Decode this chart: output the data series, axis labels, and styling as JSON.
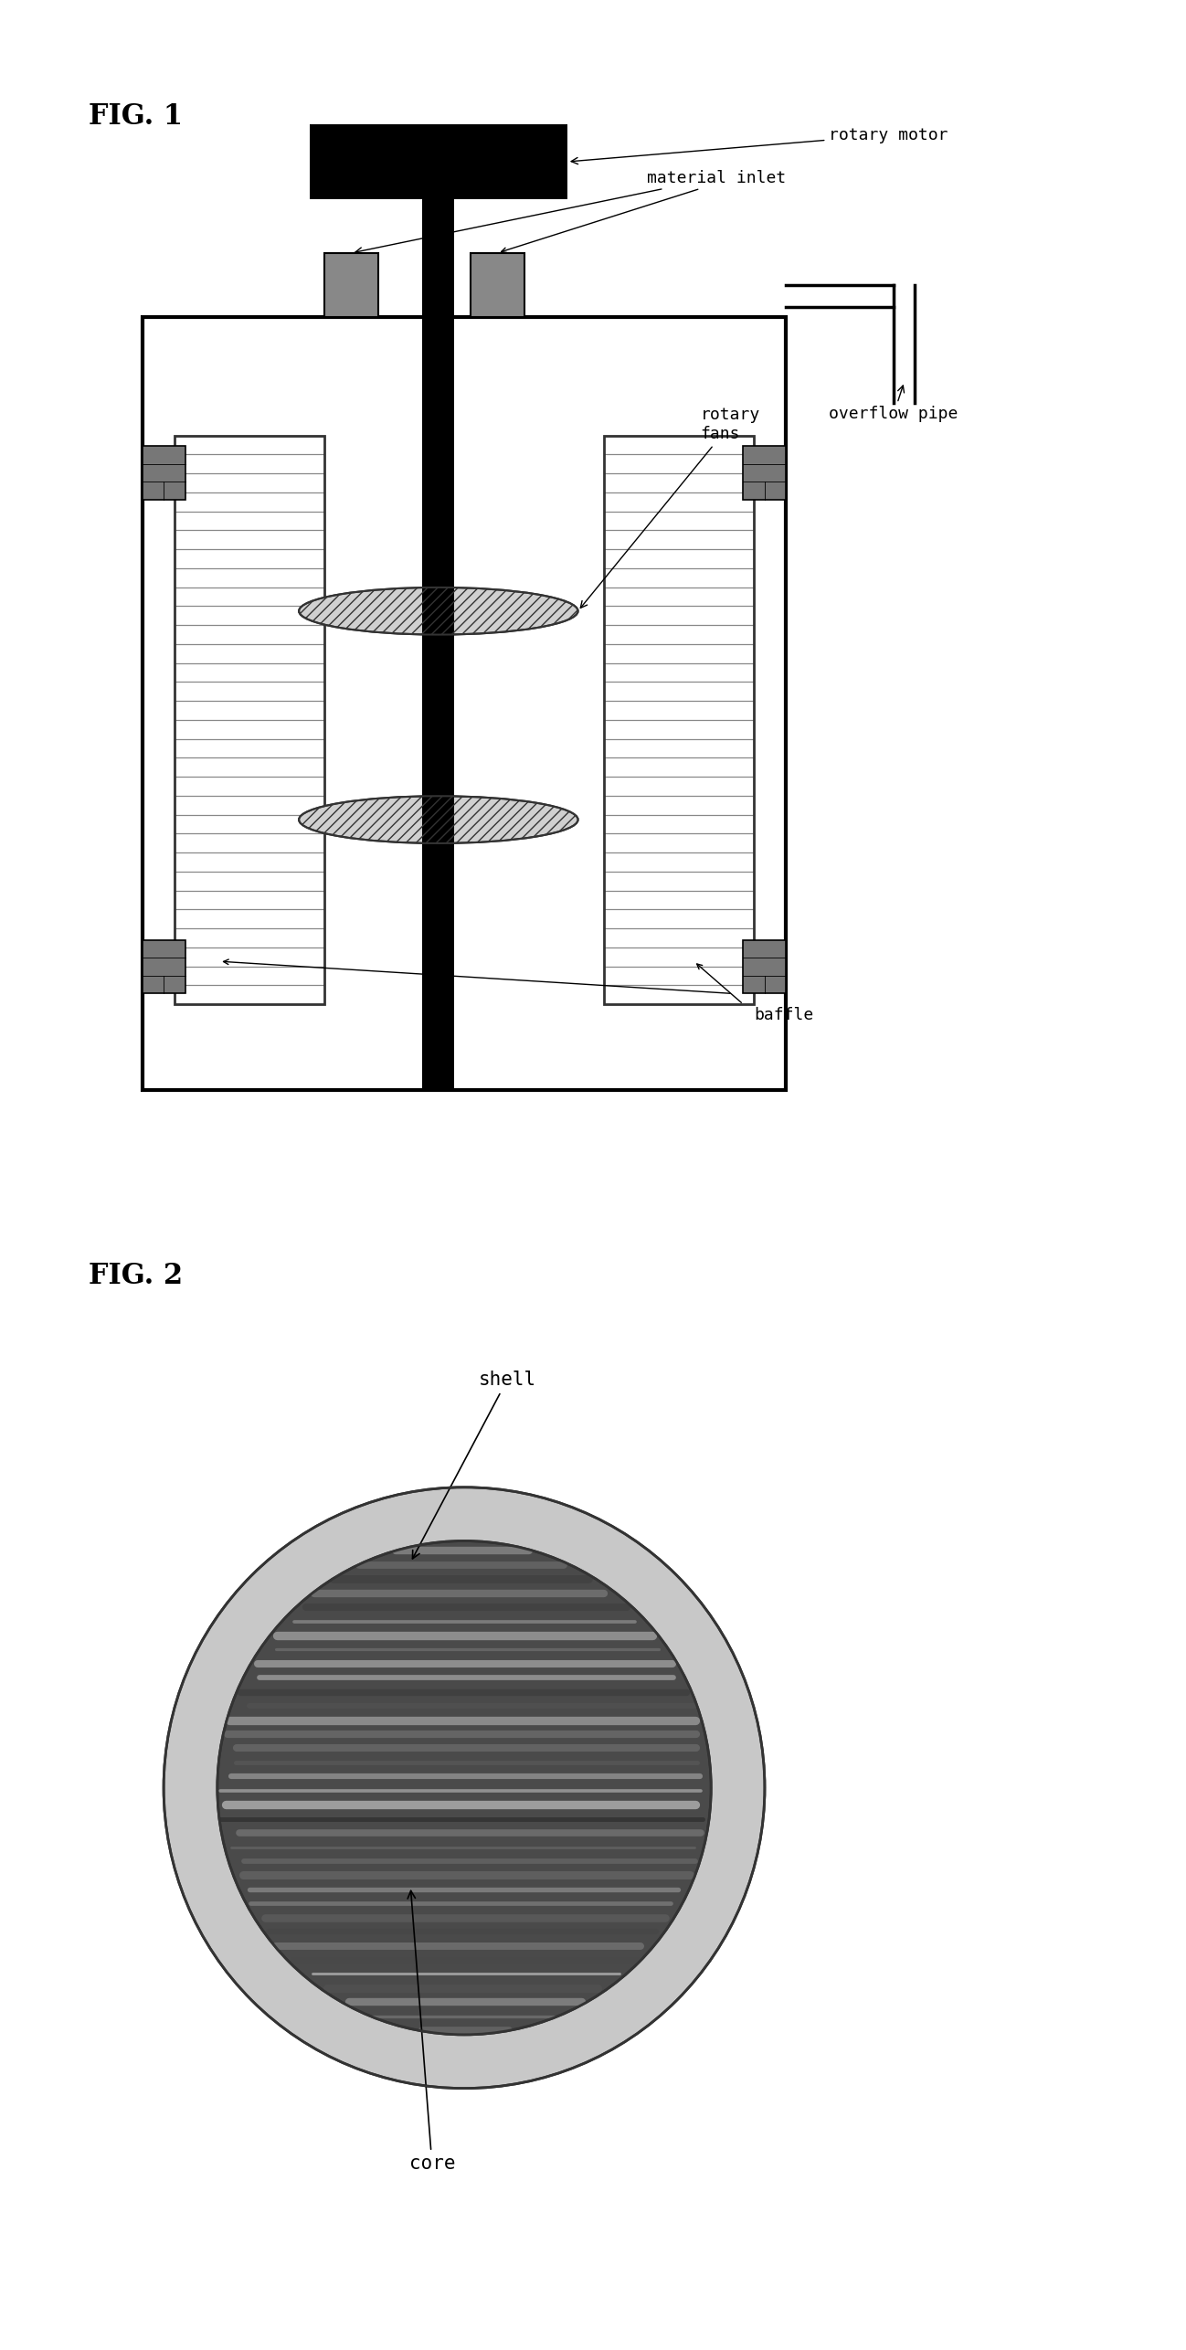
{
  "fig1_title": "FIG. 1",
  "fig2_title": "FIG. 2",
  "labels": {
    "rotary_motor": "rotary motor",
    "material_inlet": "material inlet",
    "overflow_pipe": "overflow pipe",
    "rotary_fans": "rotary\nfans",
    "baffle": "baffle"
  },
  "fig2_labels": {
    "shell": "shell",
    "core": "core"
  },
  "bg_color": "#ffffff",
  "black": "#000000",
  "dark_gray": "#333333",
  "mid_gray": "#888888",
  "light_gray": "#c8c8c8",
  "baffle_stripe": "#b0b0b0",
  "connector_color": "#777777"
}
